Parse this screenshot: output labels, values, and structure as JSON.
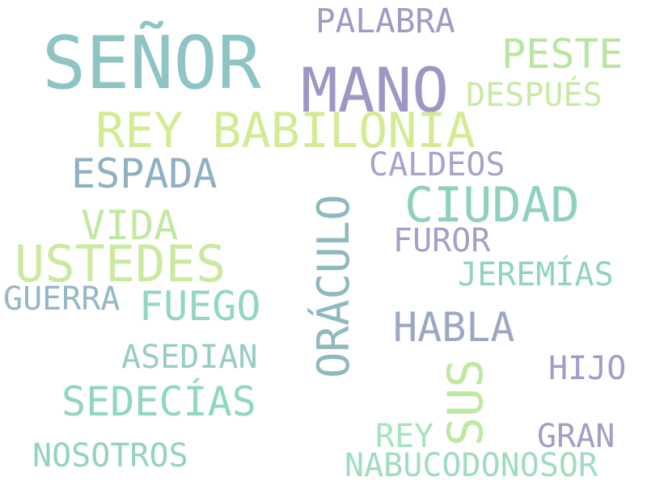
{
  "words": {
    "senor": {
      "text": "SEÑOR",
      "color": "#8fc4c4"
    },
    "mano": {
      "text": "MANO",
      "color": "#9e97c4"
    },
    "rey_babilonia": {
      "text": "REY BABILONIA",
      "color": "#d4eb94"
    },
    "palabra": {
      "text": "PALABRA",
      "color": "#a09bc4"
    },
    "peste": {
      "text": "PESTE",
      "color": "#b8e6a0"
    },
    "despues": {
      "text": "DESPUÉS",
      "color": "#c8eaa6"
    },
    "espada": {
      "text": "ESPADA",
      "color": "#8fb0c0"
    },
    "caldeos": {
      "text": "CALDEOS",
      "color": "#a8a3c8"
    },
    "ciudad": {
      "text": "CIUDAD",
      "color": "#8fd0c0"
    },
    "oraculo": {
      "text": "ORÁCULO",
      "color": "#8fb8c0"
    },
    "vida": {
      "text": "VIDA",
      "color": "#c2e8a4"
    },
    "ustedes": {
      "text": "USTEDES",
      "color": "#cce9a0"
    },
    "furor": {
      "text": "FUROR",
      "color": "#a59fc8"
    },
    "jeremias": {
      "text": "JEREMÍAS",
      "color": "#90d4c0"
    },
    "guerra": {
      "text": "GUERRA",
      "color": "#95b8c4"
    },
    "fuego": {
      "text": "FUEGO",
      "color": "#92d8be"
    },
    "habla": {
      "text": "HABLA",
      "color": "#9ba8c4"
    },
    "asedian": {
      "text": "ASEDIAN",
      "color": "#98ccc4"
    },
    "hijo": {
      "text": "HIJO",
      "color": "#a39cc8"
    },
    "sus": {
      "text": "SUS",
      "color": "#bfe8a0"
    },
    "sedecias": {
      "text": "SEDECÍAS",
      "color": "#90d8bc"
    },
    "rey": {
      "text": "REY",
      "color": "#a5e4c0"
    },
    "gran": {
      "text": "GRAN",
      "color": "#a39fc4"
    },
    "nosotros": {
      "text": "NOSOTROS",
      "color": "#94d4bc"
    },
    "nabucodonosor": {
      "text": "NABUCODONOSOR",
      "color": "#a0dcc0"
    }
  }
}
